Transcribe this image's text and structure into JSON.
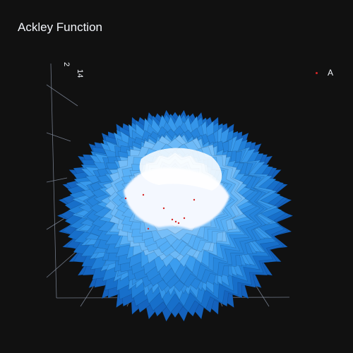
{
  "chart_data": {
    "type": "surface",
    "title": "Ackley Function",
    "function": "ackley",
    "x_range": [
      -5,
      5
    ],
    "y_range": [
      -5,
      5
    ],
    "global_minimum": {
      "x": 0,
      "y": 0,
      "z": 0
    },
    "colorscale": [
      "#0d47a1",
      "#1976d2",
      "#42a5f5",
      "#90caf9",
      "#e3f2fd",
      "#ffffff"
    ],
    "axis_tick_labels": [
      "2",
      "14"
    ],
    "series": [
      {
        "name": "A",
        "type": "scatter3d",
        "color": "#d62728"
      }
    ],
    "grid": true,
    "legend_position": "top-right"
  },
  "colors": {
    "background": "#111111",
    "text": "#f2f5fa",
    "grid": "#8a94a6",
    "marker": "#d62728"
  }
}
